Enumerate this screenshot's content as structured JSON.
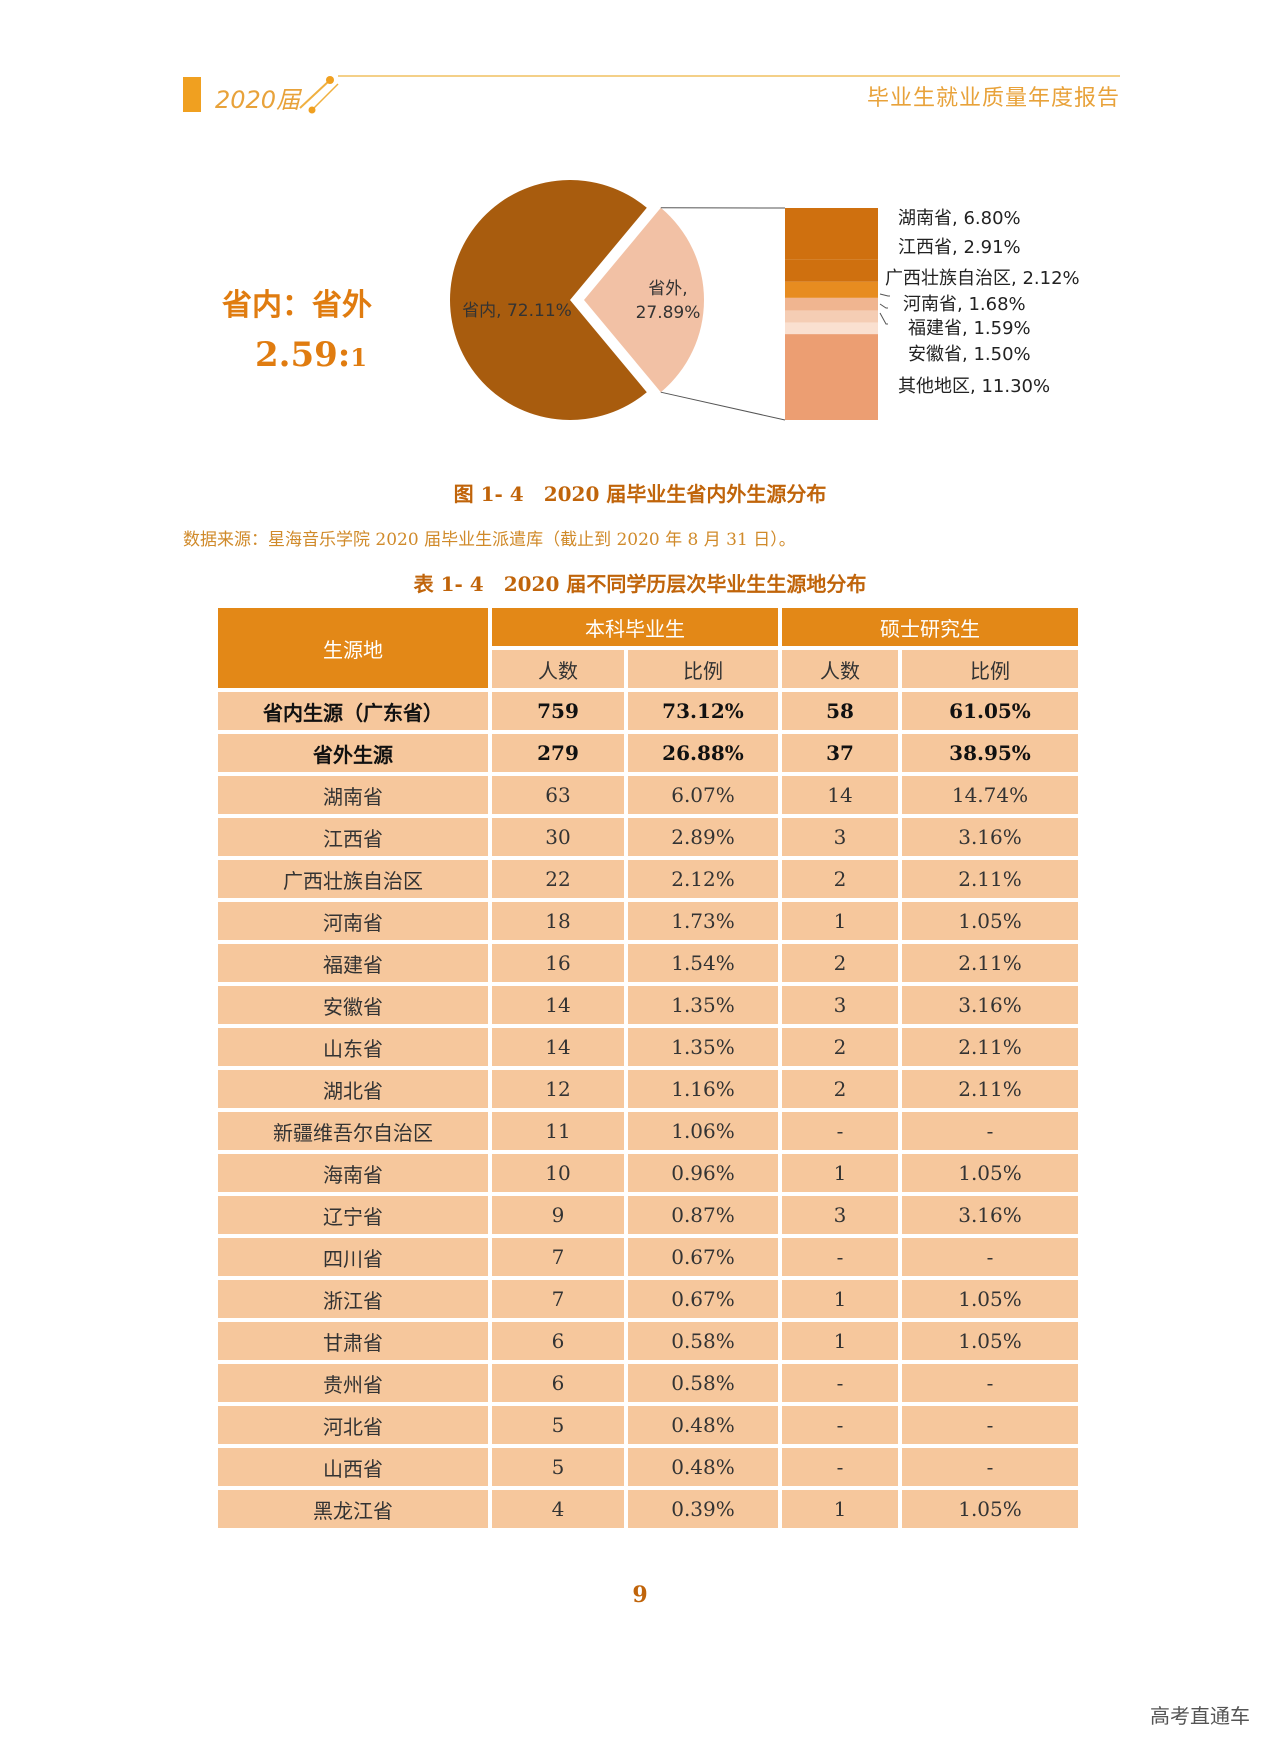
{
  "header": {
    "year": "2020届",
    "title": "毕业生就业质量年度报告"
  },
  "ratio": {
    "label": "省内：省外",
    "value": "2.59:",
    "unit": "1"
  },
  "chart_data": {
    "type": "pie",
    "slices": [
      {
        "label": "省内, 72.11%",
        "name": "省内",
        "value": 72.11,
        "color": "#a85c0e"
      },
      {
        "label": "省外,",
        "label2": "27.89%",
        "name": "省外",
        "value": 27.89,
        "color": "#f2c1a5"
      }
    ],
    "breakdown": [
      {
        "label": "湖南省, 6.80%",
        "value": 6.8,
        "color": "#cf700f"
      },
      {
        "label": "江西省, 2.91%",
        "value": 2.91,
        "color": "#cf700f"
      },
      {
        "label": "广西壮族自治区, 2.12%",
        "value": 2.12,
        "color": "#e78c20"
      },
      {
        "label": "河南省, 1.68%",
        "value": 1.68,
        "color": "#f0b590"
      },
      {
        "label": "福建省, 1.59%",
        "value": 1.59,
        "color": "#f5cdb4"
      },
      {
        "label": "安徽省, 1.50%",
        "value": 1.5,
        "color": "#fae0d0"
      },
      {
        "label": "其他地区, 11.30%",
        "value": 11.3,
        "color": "#ec9e72"
      }
    ]
  },
  "figure_caption": "图 1- 4　2020 届毕业生省内外生源分布",
  "source": "数据来源：星海音乐学院 2020 届毕业生派遣库（截止到 2020 年 8 月 31 日）。",
  "table_caption": "表 1- 4　2020 届不同学历层次毕业生生源地分布",
  "table": {
    "col_region": "生源地",
    "group_undergrad": "本科毕业生",
    "group_master": "硕士研究生",
    "sub_count": "人数",
    "sub_ratio": "比例",
    "rows": [
      {
        "region": "省内生源（广东省）",
        "u_count": "759",
        "u_ratio": "73.12%",
        "m_count": "58",
        "m_ratio": "61.05%",
        "bold": true
      },
      {
        "region": "省外生源",
        "u_count": "279",
        "u_ratio": "26.88%",
        "m_count": "37",
        "m_ratio": "38.95%",
        "bold": true
      },
      {
        "region": "湖南省",
        "u_count": "63",
        "u_ratio": "6.07%",
        "m_count": "14",
        "m_ratio": "14.74%"
      },
      {
        "region": "江西省",
        "u_count": "30",
        "u_ratio": "2.89%",
        "m_count": "3",
        "m_ratio": "3.16%"
      },
      {
        "region": "广西壮族自治区",
        "u_count": "22",
        "u_ratio": "2.12%",
        "m_count": "2",
        "m_ratio": "2.11%"
      },
      {
        "region": "河南省",
        "u_count": "18",
        "u_ratio": "1.73%",
        "m_count": "1",
        "m_ratio": "1.05%"
      },
      {
        "region": "福建省",
        "u_count": "16",
        "u_ratio": "1.54%",
        "m_count": "2",
        "m_ratio": "2.11%"
      },
      {
        "region": "安徽省",
        "u_count": "14",
        "u_ratio": "1.35%",
        "m_count": "3",
        "m_ratio": "3.16%"
      },
      {
        "region": "山东省",
        "u_count": "14",
        "u_ratio": "1.35%",
        "m_count": "2",
        "m_ratio": "2.11%"
      },
      {
        "region": "湖北省",
        "u_count": "12",
        "u_ratio": "1.16%",
        "m_count": "2",
        "m_ratio": "2.11%"
      },
      {
        "region": "新疆维吾尔自治区",
        "u_count": "11",
        "u_ratio": "1.06%",
        "m_count": "-",
        "m_ratio": "-"
      },
      {
        "region": "海南省",
        "u_count": "10",
        "u_ratio": "0.96%",
        "m_count": "1",
        "m_ratio": "1.05%"
      },
      {
        "region": "辽宁省",
        "u_count": "9",
        "u_ratio": "0.87%",
        "m_count": "3",
        "m_ratio": "3.16%"
      },
      {
        "region": "四川省",
        "u_count": "7",
        "u_ratio": "0.67%",
        "m_count": "-",
        "m_ratio": "-"
      },
      {
        "region": "浙江省",
        "u_count": "7",
        "u_ratio": "0.67%",
        "m_count": "1",
        "m_ratio": "1.05%"
      },
      {
        "region": "甘肃省",
        "u_count": "6",
        "u_ratio": "0.58%",
        "m_count": "1",
        "m_ratio": "1.05%"
      },
      {
        "region": "贵州省",
        "u_count": "6",
        "u_ratio": "0.58%",
        "m_count": "-",
        "m_ratio": "-"
      },
      {
        "region": "河北省",
        "u_count": "5",
        "u_ratio": "0.48%",
        "m_count": "-",
        "m_ratio": "-"
      },
      {
        "region": "山西省",
        "u_count": "5",
        "u_ratio": "0.48%",
        "m_count": "-",
        "m_ratio": "-"
      },
      {
        "region": "黑龙江省",
        "u_count": "4",
        "u_ratio": "0.39%",
        "m_count": "1",
        "m_ratio": "1.05%"
      }
    ]
  },
  "page_number": "9",
  "watermark": "高考直通车"
}
